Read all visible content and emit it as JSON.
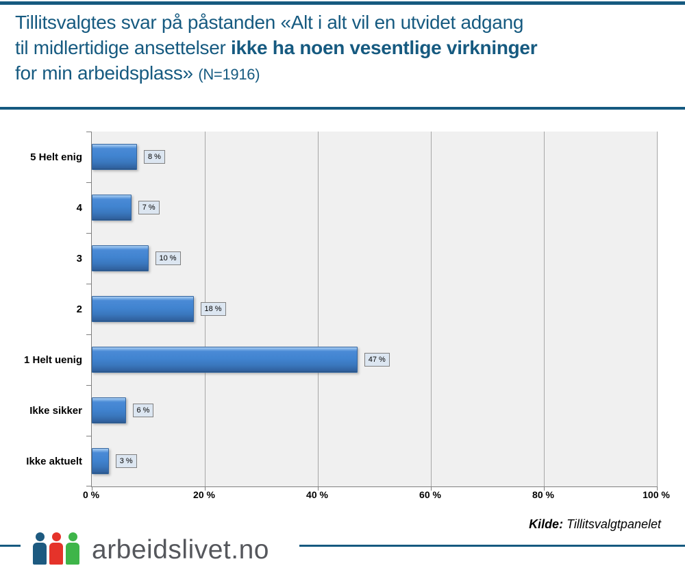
{
  "header": {
    "title_line1": "Tillitsvalgtes svar på påstanden «Alt i alt vil en utvidet adgang",
    "title_line2_normal": "til midlertidige ansettelser ",
    "title_line2_bold": "ikke ha noen vesentlige virkninger",
    "title_line3_normal": "for min arbeidsplass» ",
    "title_line3_small": "(N=1916)"
  },
  "chart_data": {
    "type": "bar",
    "orientation": "horizontal",
    "title": "Tillitsvalgtes svar på påstanden «Alt i alt vil en utvidet adgang til midlertidige ansettelser ikke ha noen vesentlige virkninger for min arbeidsplass» (N=1916)",
    "categories": [
      "5 Helt enig",
      "4",
      "3",
      "2",
      "1 Helt uenig",
      "Ikke sikker",
      "Ikke aktuelt"
    ],
    "values": [
      8,
      7,
      10,
      18,
      47,
      6,
      3
    ],
    "value_labels": [
      "8 %",
      "7 %",
      "10 %",
      "18 %",
      "47 %",
      "6 %",
      "3 %"
    ],
    "x_ticks": [
      "0 %",
      "20 %",
      "40 %",
      "60 %",
      "80 %",
      "100 %"
    ],
    "x_tick_values": [
      0,
      20,
      40,
      60,
      80,
      100
    ],
    "xlim": [
      0,
      100
    ],
    "grid": true,
    "legend": "none",
    "bar_color": "#3f7fc6",
    "plot_bg": "#f0f0f0",
    "gridline_color": "#a6a6a6",
    "value_box_bg": "#dce6f1"
  },
  "footer": {
    "source_label": "Kilde:",
    "source_value": "Tillitsvalgtpanelet",
    "logo_text": "arbeidslivet.no",
    "logo_colors": {
      "person1": "#1d5a80",
      "person2": "#e5332a",
      "person3": "#3eb549"
    }
  },
  "colors": {
    "accent_blue": "#165a80"
  }
}
